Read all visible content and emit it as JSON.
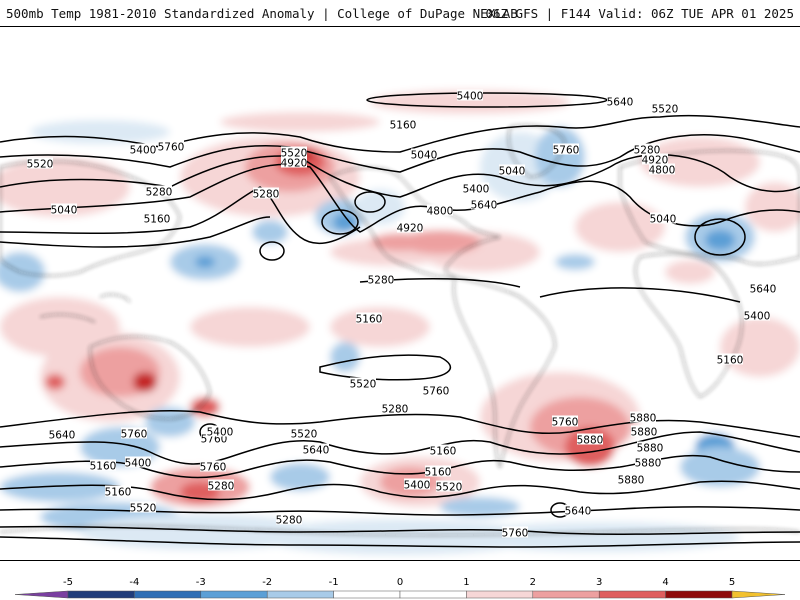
{
  "header": {
    "left_title": "500mb Temp 1981-2010 Standardized Anomaly | College of DuPage NEXLAB",
    "right_title": "06Z GFS | F144 Valid: 06Z TUE APR 01 2025"
  },
  "map": {
    "contour_labels": [
      "5040",
      "5160",
      "5280",
      "5400",
      "5520",
      "5640",
      "5760",
      "5880",
      "4920",
      "4800"
    ],
    "labels": [
      {
        "text": "5040"
      },
      {
        "text": "5160"
      },
      {
        "text": "5280"
      },
      {
        "text": "5520"
      },
      {
        "text": "5400"
      },
      {
        "text": "5160"
      },
      {
        "text": "5520"
      },
      {
        "text": "5160"
      },
      {
        "text": "5400"
      },
      {
        "text": "5760"
      },
      {
        "text": "5640"
      },
      {
        "text": "5760"
      },
      {
        "text": "5760"
      },
      {
        "text": "5280"
      },
      {
        "text": "5400"
      },
      {
        "text": "5520"
      },
      {
        "text": "5640"
      },
      {
        "text": "5280"
      },
      {
        "text": "5160"
      },
      {
        "text": "5160"
      },
      {
        "text": "5400"
      },
      {
        "text": "5520"
      },
      {
        "text": "5640"
      },
      {
        "text": "5280"
      },
      {
        "text": "5760"
      },
      {
        "text": "5880"
      },
      {
        "text": "5880"
      },
      {
        "text": "5880"
      },
      {
        "text": "5880"
      },
      {
        "text": "5880"
      },
      {
        "text": "5880"
      },
      {
        "text": "5760"
      },
      {
        "text": "5760"
      },
      {
        "text": "5520"
      },
      {
        "text": "5160"
      },
      {
        "text": "5280"
      },
      {
        "text": "4920"
      },
      {
        "text": "4800"
      },
      {
        "text": "5640"
      },
      {
        "text": "5400"
      },
      {
        "text": "5040"
      },
      {
        "text": "5760"
      },
      {
        "text": "5280"
      },
      {
        "text": "4920"
      },
      {
        "text": "4800"
      },
      {
        "text": "5520"
      },
      {
        "text": "5640"
      },
      {
        "text": "5400"
      },
      {
        "text": "5160"
      },
      {
        "text": "5040"
      },
      {
        "text": "4920"
      },
      {
        "text": "5520"
      },
      {
        "text": "5280"
      },
      {
        "text": "5760"
      },
      {
        "text": "5640"
      },
      {
        "text": "5400"
      },
      {
        "text": "5160"
      },
      {
        "text": "5040"
      },
      {
        "text": "4800"
      }
    ]
  },
  "colorbar": {
    "ticks": [
      "-5",
      "-4",
      "-3",
      "-2",
      "-1",
      "0",
      "1",
      "2",
      "3",
      "4",
      "5"
    ],
    "colors": [
      "#7a3fa0",
      "#213d7a",
      "#2f6fb5",
      "#5b9fd6",
      "#a8cbe8",
      "#dce9f4",
      "#ffffff",
      "#ffffff",
      "#f6d6d6",
      "#eda0a0",
      "#df5e5e",
      "#c42828",
      "#8e0b0b",
      "#f2c12e"
    ]
  }
}
